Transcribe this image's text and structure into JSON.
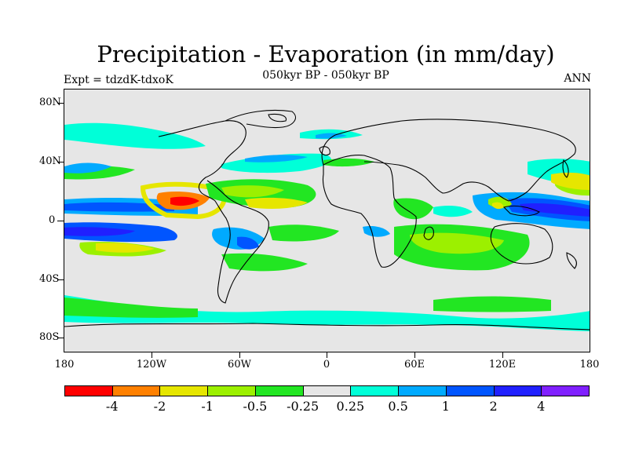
{
  "figure": {
    "title": "Precipitation - Evaporation (in mm/day)",
    "subtitle": "050kyr BP - 050kyr BP",
    "left_label": "Expt = tdzdK-tdxoK",
    "right_label": "ANN"
  },
  "axes": {
    "lat_ticks": [
      "80N",
      "40N",
      "0",
      "40S",
      "80S"
    ],
    "lon_ticks": [
      "180",
      "120W",
      "60W",
      "0",
      "60E",
      "120E",
      "180"
    ]
  },
  "colorbar": {
    "colors": [
      "#ff0000",
      "#ff8000",
      "#e6e600",
      "#9cf000",
      "#22e622",
      "#e6e6e6",
      "#00ffd8",
      "#00aaff",
      "#0055ff",
      "#2020ff",
      "#8020ff"
    ],
    "labels": [
      "-4",
      "-2",
      "-1",
      "-0.5",
      "-0.25",
      "0.25",
      "0.5",
      "1",
      "2",
      "4"
    ]
  },
  "colors": {
    "background": "#e6e6e6",
    "coastline": "#000000"
  }
}
